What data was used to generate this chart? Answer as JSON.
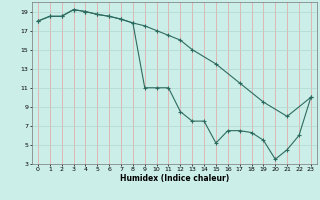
{
  "xlabel": "Humidex (Indice chaleur)",
  "background_color": "#cceee8",
  "grid_color_v": "#e8a0a0",
  "grid_color_h": "#b0d8d0",
  "line_color": "#2d6b60",
  "xlim": [
    -0.5,
    23.5
  ],
  "ylim": [
    3,
    20
  ],
  "xticks": [
    0,
    1,
    2,
    3,
    4,
    5,
    6,
    7,
    8,
    9,
    10,
    11,
    12,
    13,
    14,
    15,
    16,
    17,
    18,
    19,
    20,
    21,
    22,
    23
  ],
  "yticks": [
    3,
    5,
    7,
    9,
    11,
    13,
    15,
    17,
    19
  ],
  "line1_x": [
    0,
    1,
    2,
    3,
    4,
    5,
    6,
    7,
    8,
    9,
    10,
    11,
    12,
    13,
    14,
    15,
    16,
    17,
    18,
    19,
    20,
    21,
    22,
    23
  ],
  "line1_y": [
    18.0,
    18.5,
    18.5,
    19.2,
    19.0,
    18.7,
    18.5,
    18.2,
    17.8,
    11.0,
    11.0,
    11.0,
    8.5,
    7.5,
    7.5,
    5.2,
    6.5,
    6.5,
    6.3,
    5.5,
    3.5,
    4.5,
    6.0,
    10.0
  ],
  "line2_x": [
    0,
    1,
    2,
    3,
    4,
    5,
    6,
    7,
    8,
    9,
    10,
    11,
    12,
    13,
    15,
    17,
    19,
    21,
    23
  ],
  "line2_y": [
    18.0,
    18.5,
    18.5,
    19.2,
    19.0,
    18.7,
    18.5,
    18.2,
    17.8,
    17.5,
    17.0,
    16.5,
    16.0,
    15.0,
    13.5,
    11.5,
    9.5,
    8.0,
    10.0
  ]
}
